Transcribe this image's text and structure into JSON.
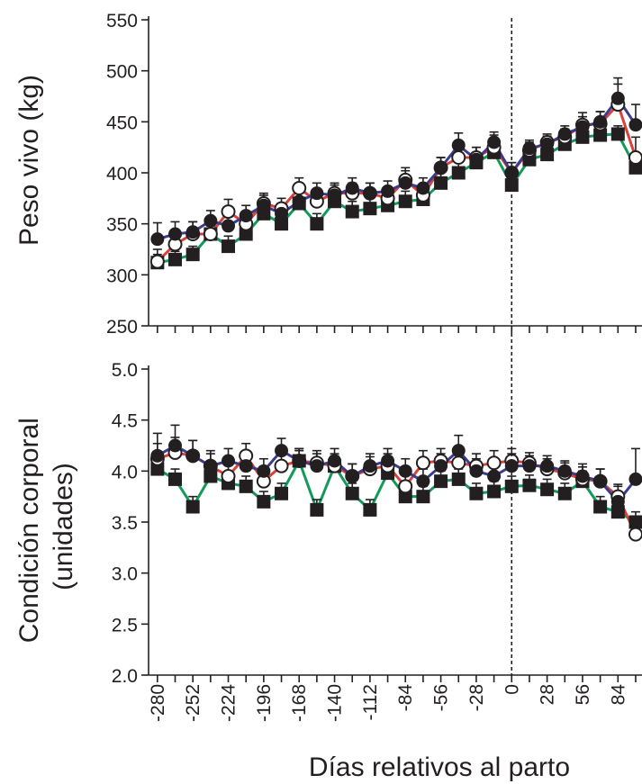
{
  "chart_data": [
    {
      "type": "line",
      "panel": "top",
      "ylabel": "Peso vivo (kg)",
      "ylim": [
        250,
        550
      ],
      "yticks": [
        250,
        300,
        350,
        400,
        450,
        500,
        550
      ],
      "xlim": [
        -287,
        103
      ],
      "x": [
        -280,
        -266,
        -252,
        -238,
        -224,
        -210,
        -196,
        -182,
        -168,
        -154,
        -140,
        -126,
        -112,
        -98,
        -84,
        -70,
        -56,
        -42,
        -28,
        -14,
        0,
        14,
        28,
        42,
        56,
        70,
        84,
        98
      ],
      "series": [
        {
          "marker": "filled-circle",
          "line_color": "#3b3b8f",
          "values": [
            335,
            340,
            342,
            353,
            348,
            358,
            368,
            360,
            372,
            380,
            378,
            385,
            380,
            382,
            390,
            385,
            405,
            427,
            413,
            430,
            400,
            424,
            428,
            438,
            445,
            450,
            473,
            447
          ],
          "errors": [
            16,
            12,
            10,
            10,
            10,
            10,
            10,
            10,
            10,
            10,
            10,
            10,
            10,
            10,
            12,
            10,
            10,
            12,
            12,
            10,
            10,
            8,
            8,
            8,
            10,
            10,
            20,
            20
          ]
        },
        {
          "marker": "open-circle",
          "line_color": "#d9413a",
          "values": [
            313,
            330,
            340,
            340,
            362,
            350,
            370,
            365,
            385,
            372,
            380,
            380,
            380,
            375,
            393,
            378,
            405,
            415,
            415,
            425,
            400,
            422,
            430,
            435,
            447,
            448,
            467,
            415
          ],
          "errors": [
            12,
            12,
            12,
            10,
            12,
            10,
            10,
            10,
            10,
            10,
            10,
            10,
            10,
            10,
            12,
            10,
            10,
            10,
            10,
            12,
            10,
            8,
            8,
            8,
            12,
            12,
            20,
            20
          ]
        },
        {
          "marker": "filled-square",
          "line_color": "#119a5a",
          "values": [
            312,
            315,
            320,
            340,
            328,
            340,
            360,
            350,
            370,
            350,
            372,
            362,
            365,
            368,
            372,
            374,
            390,
            400,
            410,
            420,
            388,
            413,
            418,
            428,
            435,
            437,
            438,
            405
          ],
          "errors": [
            8,
            8,
            8,
            8,
            10,
            8,
            10,
            10,
            10,
            10,
            10,
            10,
            10,
            10,
            10,
            10,
            12,
            12,
            10,
            10,
            8,
            8,
            8,
            8,
            8,
            8,
            8,
            8
          ]
        }
      ],
      "vline_x": 0
    },
    {
      "type": "line",
      "panel": "bottom",
      "ylabel": "Condición corporal\n(unidades)",
      "ylim": [
        2.0,
        5.0
      ],
      "yticks": [
        "2.0",
        "2.5",
        "3.0",
        "3.5",
        "4.0",
        "4.5",
        "5.0"
      ],
      "xlim": [
        -287,
        103
      ],
      "xlabel": "Días relativos al parto",
      "xticks": [
        -280,
        -252,
        -224,
        -196,
        -168,
        -140,
        -112,
        -84,
        -56,
        -28,
        0,
        28,
        56,
        84
      ],
      "x": [
        -280,
        -266,
        -252,
        -238,
        -224,
        -210,
        -196,
        -182,
        -168,
        -154,
        -140,
        -126,
        -112,
        -98,
        -84,
        -70,
        -56,
        -42,
        -28,
        -14,
        0,
        14,
        28,
        42,
        56,
        70,
        84,
        98
      ],
      "series": [
        {
          "marker": "filled-circle",
          "line_color": "#3b3b8f",
          "values": [
            4.15,
            4.25,
            4.15,
            4.05,
            4.1,
            4.05,
            4.0,
            4.2,
            4.1,
            4.05,
            4.1,
            3.95,
            4.05,
            4.1,
            4.0,
            3.9,
            4.05,
            4.2,
            4.0,
            3.95,
            4.05,
            4.05,
            4.05,
            4.0,
            3.95,
            3.9,
            3.7,
            3.92
          ],
          "errors": [
            0.22,
            0.2,
            0.15,
            0.15,
            0.12,
            0.12,
            0.12,
            0.12,
            0.12,
            0.12,
            0.12,
            0.12,
            0.12,
            0.12,
            0.12,
            0.12,
            0.12,
            0.15,
            0.12,
            0.12,
            0.12,
            0.1,
            0.1,
            0.1,
            0.12,
            0.12,
            0.15,
            0.3
          ]
        },
        {
          "marker": "open-circle",
          "line_color": "#d9413a",
          "values": [
            4.12,
            4.18,
            4.15,
            4.05,
            3.95,
            4.15,
            3.9,
            4.05,
            4.1,
            4.08,
            4.05,
            3.95,
            4.02,
            4.05,
            3.85,
            4.08,
            4.1,
            4.08,
            4.05,
            4.08,
            4.1,
            4.08,
            4.02,
            3.98,
            3.92,
            3.9,
            3.75,
            3.38
          ],
          "errors": [
            0.15,
            0.15,
            0.15,
            0.12,
            0.12,
            0.12,
            0.12,
            0.12,
            0.12,
            0.12,
            0.12,
            0.12,
            0.12,
            0.12,
            0.12,
            0.12,
            0.12,
            0.12,
            0.12,
            0.12,
            0.12,
            0.1,
            0.1,
            0.1,
            0.12,
            0.12,
            0.12,
            0.12
          ]
        },
        {
          "marker": "filled-square",
          "line_color": "#119a5a",
          "values": [
            4.02,
            3.92,
            3.65,
            3.95,
            3.88,
            3.85,
            3.7,
            3.78,
            4.1,
            3.62,
            4.05,
            3.78,
            3.62,
            3.98,
            3.75,
            3.75,
            3.9,
            3.92,
            3.78,
            3.8,
            3.85,
            3.86,
            3.82,
            3.78,
            3.9,
            3.65,
            3.6,
            3.5
          ],
          "errors": [
            0.1,
            0.1,
            0.1,
            0.1,
            0.1,
            0.1,
            0.1,
            0.1,
            0.1,
            0.1,
            0.1,
            0.1,
            0.1,
            0.1,
            0.1,
            0.1,
            0.1,
            0.1,
            0.1,
            0.1,
            0.1,
            0.1,
            0.1,
            0.1,
            0.1,
            0.1,
            0.1,
            0.1
          ]
        }
      ],
      "vline_x": 0
    }
  ]
}
